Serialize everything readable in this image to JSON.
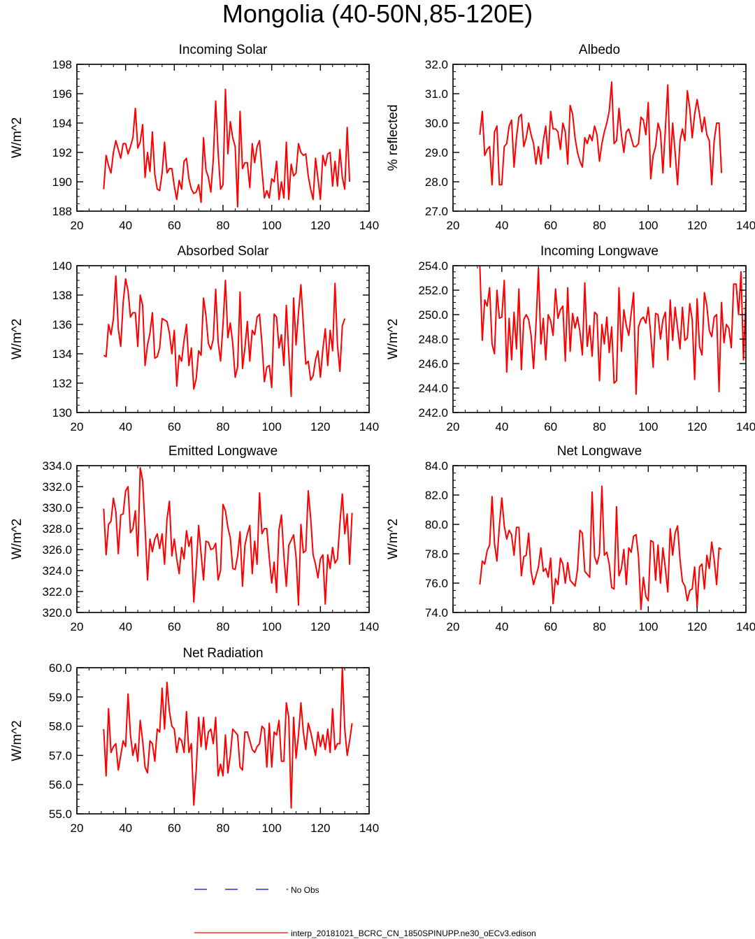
{
  "title": "Mongolia (40-50N,85-120E)",
  "legend": {
    "obs_label": "No Obs",
    "obs_color": "#0000cc",
    "model_label": "interp_20181021_BCRC_CN_1850SPINUPP.ne30_oECv3.edison",
    "model_color": "#ff0000"
  },
  "chart_data": [
    {
      "type": "line",
      "title": "Incoming Solar",
      "ylabel": "W/m^2",
      "xlim": [
        20,
        140
      ],
      "ylim": [
        188,
        198
      ],
      "xticks": [
        "20",
        "40",
        "60",
        "80",
        "100",
        "120",
        "140"
      ],
      "yticks": [
        "188",
        "190",
        "192",
        "194",
        "196",
        "198"
      ],
      "x_start": 31,
      "values": [
        189.5,
        191.8,
        191.1,
        190.6,
        192.0,
        192.8,
        192.2,
        191.6,
        192.6,
        192.6,
        191.9,
        192.4,
        193.0,
        195.0,
        192.3,
        192.7,
        193.9,
        190.3,
        192.0,
        190.7,
        193.4,
        190.5,
        189.5,
        189.4,
        190.6,
        192.7,
        190.6,
        190.9,
        190.9,
        189.7,
        188.8,
        190.1,
        189.5,
        191.4,
        191.6,
        190.2,
        189.5,
        189.2,
        189.3,
        189.8,
        188.6,
        193.0,
        190.8,
        190.3,
        189.3,
        191.5,
        195.5,
        192.0,
        189.5,
        189.8,
        196.3,
        191.9,
        194.1,
        193.0,
        192.4,
        188.3,
        194.8,
        190.9,
        191.3,
        191.3,
        189.6,
        192.6,
        191.3,
        192.4,
        192.8,
        190.8,
        188.9,
        189.4,
        188.9,
        190.2,
        190.0,
        191.4,
        188.8,
        190.0,
        188.9,
        192.7,
        188.8,
        191.2,
        190.4,
        190.6,
        192.6,
        192.0,
        191.8,
        191.9,
        190.4,
        189.5,
        188.8,
        191.6,
        190.2,
        188.8,
        191.8,
        191.1,
        191.9,
        192.0,
        189.7,
        191.4,
        189.7,
        192.2,
        190.3,
        189.5,
        193.7,
        190.0
      ]
    },
    {
      "type": "line",
      "title": "Albedo",
      "ylabel": "% reflected",
      "xlim": [
        20,
        140
      ],
      "ylim": [
        27.0,
        32.0
      ],
      "xticks": [
        "20",
        "40",
        "60",
        "80",
        "100",
        "120",
        "140"
      ],
      "yticks": [
        "27.0",
        "28.0",
        "29.0",
        "30.0",
        "31.0",
        "32.0"
      ],
      "x_start": 31,
      "values": [
        29.6,
        30.4,
        28.9,
        29.1,
        29.2,
        27.9,
        29.7,
        29.9,
        27.9,
        27.9,
        29.2,
        29.3,
        29.9,
        30.1,
        28.5,
        29.5,
        30.2,
        30.3,
        29.2,
        29.5,
        30.0,
        29.6,
        29.3,
        28.6,
        29.2,
        28.6,
        29.4,
        29.9,
        28.8,
        30.4,
        29.8,
        29.8,
        29.7,
        29.1,
        30.0,
        29.7,
        28.6,
        30.6,
        30.3,
        29.5,
        29.0,
        28.7,
        28.5,
        29.5,
        29.3,
        29.6,
        29.4,
        29.9,
        29.6,
        28.7,
        29.3,
        29.7,
        30.0,
        30.4,
        31.4,
        29.3,
        29.4,
        30.5,
        29.6,
        29.0,
        29.7,
        29.8,
        29.5,
        29.2,
        29.2,
        29.3,
        30.2,
        30.1,
        29.6,
        30.7,
        28.1,
        28.9,
        29.2,
        30.0,
        29.7,
        28.3,
        29.8,
        31.3,
        28.5,
        30.0,
        29.0,
        27.9,
        29.4,
        29.8,
        29.4,
        31.1,
        30.5,
        29.5,
        30.3,
        30.8,
        30.3,
        29.7,
        30.2,
        29.6,
        29.4,
        27.9,
        29.4,
        30.0,
        30.0,
        28.3
      ]
    },
    {
      "type": "line",
      "title": "Absorbed Solar",
      "ylabel": "W/m^2",
      "xlim": [
        20,
        140
      ],
      "ylim": [
        130,
        140
      ],
      "xticks": [
        "20",
        "40",
        "60",
        "80",
        "100",
        "120",
        "140"
      ],
      "yticks": [
        "130",
        "132",
        "134",
        "136",
        "138",
        "140"
      ],
      "x_start": 31,
      "values": [
        133.9,
        133.8,
        136.0,
        135.3,
        136.4,
        139.3,
        135.7,
        134.5,
        137.5,
        139.1,
        138.3,
        136.5,
        136.8,
        136.8,
        134.5,
        138.0,
        137.3,
        133.2,
        134.6,
        135.4,
        136.8,
        133.7,
        133.8,
        134.4,
        136.4,
        136.3,
        136.2,
        135.4,
        134.0,
        135.6,
        131.8,
        133.9,
        133.5,
        134.9,
        136.0,
        133.2,
        134.4,
        131.6,
        132.3,
        134.2,
        133.9,
        137.8,
        136.6,
        134.7,
        134.3,
        135.0,
        138.4,
        134.8,
        133.5,
        136.0,
        139.0,
        135.1,
        136.1,
        134.7,
        132.4,
        133.1,
        138.2,
        133.0,
        134.4,
        136.2,
        133.5,
        135.6,
        135.3,
        136.5,
        136.7,
        134.7,
        132.1,
        133.1,
        133.2,
        131.7,
        136.7,
        136.5,
        134.4,
        135.3,
        133.2,
        137.3,
        134.1,
        131.1,
        137.8,
        134.6,
        136.8,
        138.7,
        136.0,
        133.3,
        133.5,
        132.2,
        132.5,
        133.6,
        134.2,
        132.4,
        134.3,
        135.7,
        133.2,
        135.6,
        134.2,
        138.8,
        134.6,
        132.8,
        135.9,
        136.4
      ]
    },
    {
      "type": "line",
      "title": "Incoming Longwave",
      "ylabel": "W/m^2",
      "xlim": [
        20,
        140
      ],
      "ylim": [
        242.0,
        254.0
      ],
      "xticks": [
        "20",
        "40",
        "60",
        "80",
        "100",
        "120",
        "140"
      ],
      "yticks": [
        "242.0",
        "244.0",
        "246.0",
        "248.0",
        "250.0",
        "252.0",
        "254.0"
      ],
      "x_start": 31,
      "values": [
        254.0,
        247.9,
        251.2,
        250.7,
        252.2,
        247.6,
        246.8,
        252.0,
        249.7,
        249.8,
        252.8,
        245.3,
        249.7,
        246.3,
        250.2,
        247.2,
        252.1,
        245.5,
        249.6,
        250.0,
        249.6,
        248.3,
        245.6,
        249.2,
        253.8,
        247.6,
        249.7,
        246.3,
        250.0,
        249.5,
        248.3,
        252.1,
        249.7,
        250.4,
        250.7,
        246.2,
        252.2,
        247.0,
        250.1,
        248.9,
        249.8,
        248.6,
        246.7,
        252.6,
        247.4,
        249.1,
        246.6,
        250.2,
        250.0,
        244.6,
        249.2,
        247.6,
        249.8,
        246.9,
        249.0,
        244.4,
        244.6,
        252.2,
        247.0,
        250.4,
        249.1,
        248.3,
        250.1,
        251.8,
        243.5,
        249.0,
        249.6,
        249.8,
        249.3,
        250.6,
        248.4,
        245.7,
        250.1,
        250.0,
        248.0,
        249.6,
        250.2,
        246.3,
        251.2,
        247.9,
        250.6,
        248.9,
        247.2,
        250.6,
        247.9,
        248.1,
        250.9,
        249.6,
        244.7,
        251.3,
        247.4,
        246.7,
        251.8,
        250.7,
        248.7,
        248.2,
        249.8,
        250.0,
        243.7,
        251.0,
        247.7,
        249.2,
        248.9,
        247.3,
        252.5,
        252.5,
        250.0,
        253.5,
        246.3,
        251.3
      ]
    },
    {
      "type": "line",
      "title": "Emitted Longwave",
      "ylabel": "W/m^2",
      "xlim": [
        20,
        140
      ],
      "ylim": [
        320.0,
        334.0
      ],
      "xticks": [
        "20",
        "40",
        "60",
        "80",
        "100",
        "120",
        "140"
      ],
      "yticks": [
        "320.0",
        "322.0",
        "324.0",
        "326.0",
        "328.0",
        "330.0",
        "332.0",
        "334.0"
      ],
      "x_start": 31,
      "values": [
        329.9,
        325.5,
        328.4,
        328.7,
        330.9,
        329.6,
        325.6,
        329.3,
        329.4,
        331.6,
        332.0,
        327.6,
        328.0,
        329.7,
        325.4,
        333.8,
        332.6,
        328.1,
        323.1,
        327.0,
        325.8,
        327.0,
        327.5,
        326.1,
        327.5,
        324.6,
        328.9,
        330.6,
        325.4,
        327.0,
        325.1,
        323.7,
        326.2,
        325.1,
        327.8,
        326.3,
        327.2,
        321.0,
        324.3,
        328.3,
        325.6,
        323.1,
        326.8,
        326.7,
        326.0,
        326.1,
        326.6,
        323.1,
        324.0,
        330.3,
        329.7,
        328.1,
        327.1,
        324.2,
        324.1,
        325.4,
        327.7,
        322.5,
        326.4,
        327.5,
        328.3,
        323.7,
        326.8,
        324.6,
        331.4,
        327.5,
        328.0,
        328.0,
        325.2,
        322.8,
        324.8,
        321.9,
        327.9,
        329.3,
        325.4,
        322.5,
        326.4,
        326.9,
        327.4,
        325.3,
        320.7,
        328.4,
        325.7,
        325.9,
        331.6,
        329.0,
        325.5,
        324.6,
        323.3,
        325.1,
        325.5,
        320.8,
        325.5,
        324.2,
        326.2,
        324.7,
        325.1,
        328.5,
        331.3,
        327.5,
        329.4,
        324.6,
        329.5
      ]
    },
    {
      "type": "line",
      "title": "Net Longwave",
      "ylabel": "W/m^2",
      "xlim": [
        20,
        140
      ],
      "ylim": [
        74.0,
        84.0
      ],
      "xticks": [
        "20",
        "40",
        "60",
        "80",
        "100",
        "120",
        "140"
      ],
      "yticks": [
        "74.0",
        "76.0",
        "78.0",
        "80.0",
        "82.0",
        "84.0"
      ],
      "x_start": 31,
      "values": [
        75.9,
        77.5,
        77.3,
        78.2,
        78.6,
        81.9,
        78.7,
        77.5,
        79.9,
        81.8,
        79.9,
        79.0,
        79.6,
        79.3,
        77.9,
        79.8,
        79.8,
        76.5,
        77.8,
        77.9,
        79.4,
        76.8,
        75.9,
        76.5,
        77.1,
        78.4,
        76.8,
        77.0,
        76.4,
        77.7,
        74.6,
        76.3,
        75.9,
        77.7,
        77.3,
        76.0,
        77.4,
        76.2,
        76.0,
        75.8,
        76.9,
        79.6,
        79.4,
        76.8,
        76.6,
        76.4,
        82.2,
        77.8,
        77.3,
        78.0,
        82.6,
        77.9,
        78.1,
        77.3,
        75.7,
        75.6,
        81.2,
        76.5,
        77.0,
        78.3,
        75.9,
        78.4,
        78.1,
        79.2,
        79.3,
        77.8,
        74.2,
        76.4,
        75.1,
        74.8,
        78.9,
        78.8,
        76.2,
        78.6,
        76.0,
        78.4,
        77.0,
        75.4,
        79.7,
        77.9,
        79.4,
        79.9,
        77.6,
        76.1,
        75.8,
        74.8,
        75.5,
        75.6,
        77.1,
        74.4,
        77.1,
        77.3,
        75.6,
        77.9,
        77.0,
        78.8,
        77.6,
        75.9,
        78.4,
        78.3
      ]
    },
    {
      "type": "line",
      "title": "Net Radiation",
      "ylabel": "W/m^2",
      "xlim": [
        20,
        140
      ],
      "ylim": [
        55.0,
        60.0
      ],
      "xticks": [
        "20",
        "40",
        "60",
        "80",
        "100",
        "120",
        "140"
      ],
      "yticks": [
        "55.0",
        "56.0",
        "57.0",
        "58.0",
        "59.0",
        "60.0"
      ],
      "x_start": 31,
      "values": [
        57.9,
        56.3,
        58.6,
        57.1,
        57.3,
        57.4,
        56.5,
        57.0,
        57.5,
        57.3,
        59.1,
        57.7,
        57.0,
        57.4,
        56.8,
        58.2,
        57.5,
        56.6,
        56.4,
        57.5,
        57.4,
        56.8,
        57.9,
        57.8,
        59.3,
        57.9,
        59.5,
        58.5,
        58.0,
        57.9,
        57.1,
        57.6,
        57.5,
        57.1,
        58.5,
        57.1,
        57.4,
        55.3,
        56.5,
        58.3,
        57.3,
        58.3,
        57.2,
        57.8,
        57.9,
        57.4,
        58.3,
        56.3,
        56.7,
        56.3,
        57.7,
        56.4,
        57.0,
        57.9,
        57.8,
        57.7,
        56.6,
        56.5,
        57.8,
        57.8,
        57.5,
        57.2,
        57.1,
        57.3,
        57.4,
        58.0,
        57.9,
        56.6,
        58.1,
        56.6,
        57.8,
        57.7,
        58.2,
        56.8,
        56.8,
        58.8,
        58.3,
        55.2,
        58.3,
        56.9,
        57.7,
        58.8,
        57.8,
        57.2,
        58.1,
        57.8,
        57.4,
        57.0,
        57.8,
        57.3,
        57.7,
        57.2,
        57.9,
        57.1,
        58.6,
        57.2,
        57.4,
        57.4,
        60.0,
        57.9,
        57.0,
        57.5,
        58.1
      ]
    }
  ]
}
